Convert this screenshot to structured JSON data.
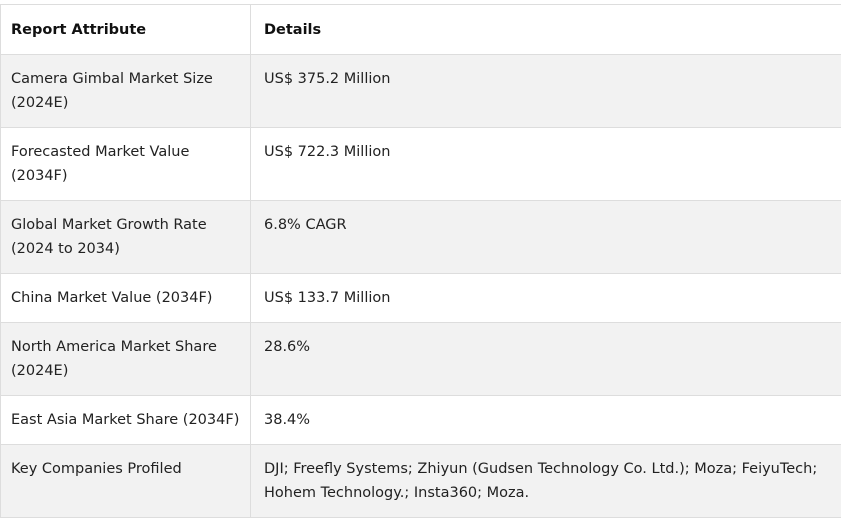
{
  "table": {
    "headers": [
      "Report Attribute",
      "Details"
    ],
    "rows": [
      {
        "attribute": "Camera Gimbal Market Size (2024E)",
        "details": "US$ 375.2 Million"
      },
      {
        "attribute": "Forecasted Market Value (2034F)",
        "details": "US$ 722.3 Million"
      },
      {
        "attribute": "Global Market Growth Rate (2024 to 2034)",
        "details": "6.8% CAGR"
      },
      {
        "attribute": "China Market Value (2034F)",
        "details": "US$ 133.7 Million"
      },
      {
        "attribute": "North America Market Share (2024E)",
        "details": "28.6%"
      },
      {
        "attribute": "East Asia Market Share (2034F)",
        "details": "38.4%"
      },
      {
        "attribute": "Key Companies Profiled",
        "details": "DJI; Freefly Systems; Zhiyun (Gudsen Technology Co. Ltd.); Moza; FeiyuTech; Hohem Technology.; Insta360; Moza."
      }
    ]
  }
}
